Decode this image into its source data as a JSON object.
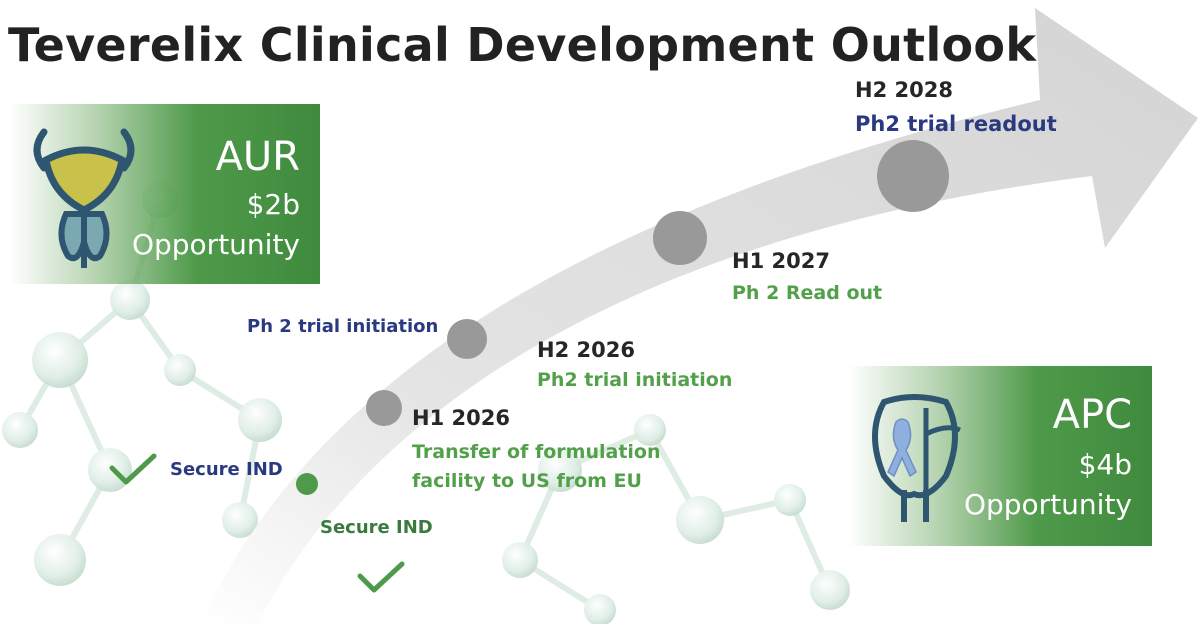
{
  "title": "Teverelix Clinical Development Outlook",
  "colors": {
    "arrow": "#d9d9d9",
    "milestone_dot": "#999999",
    "done_dot": "#4f9a4a",
    "box_green": "#4f9a4a",
    "date_text": "#262626",
    "green_text": "#53a04a",
    "navy_text": "#2a3a80"
  },
  "aur_box": {
    "name": "AUR",
    "value": "$2b",
    "label": "Opportunity",
    "icon": "bladder-prostate-icon"
  },
  "apc_box": {
    "name": "APC",
    "value": "$4b",
    "label": "Opportunity",
    "icon": "prostate-ribbon-icon"
  },
  "milestones": {
    "secure_ind_left": "Secure IND",
    "secure_ind_below": "Secure IND",
    "ph2_initiation_left": "Ph 2 trial initiation",
    "h1_2026": {
      "date": "H1 2026",
      "line1": "Transfer of formulation",
      "line2": "facility to US from EU"
    },
    "h2_2026": {
      "date": "H2 2026",
      "desc": "Ph2 trial initiation"
    },
    "h1_2027": {
      "date": "H1 2027",
      "desc": "Ph 2 Read out"
    },
    "h2_2028": {
      "date": "H2 2028",
      "desc": "Ph2 trial readout"
    }
  }
}
